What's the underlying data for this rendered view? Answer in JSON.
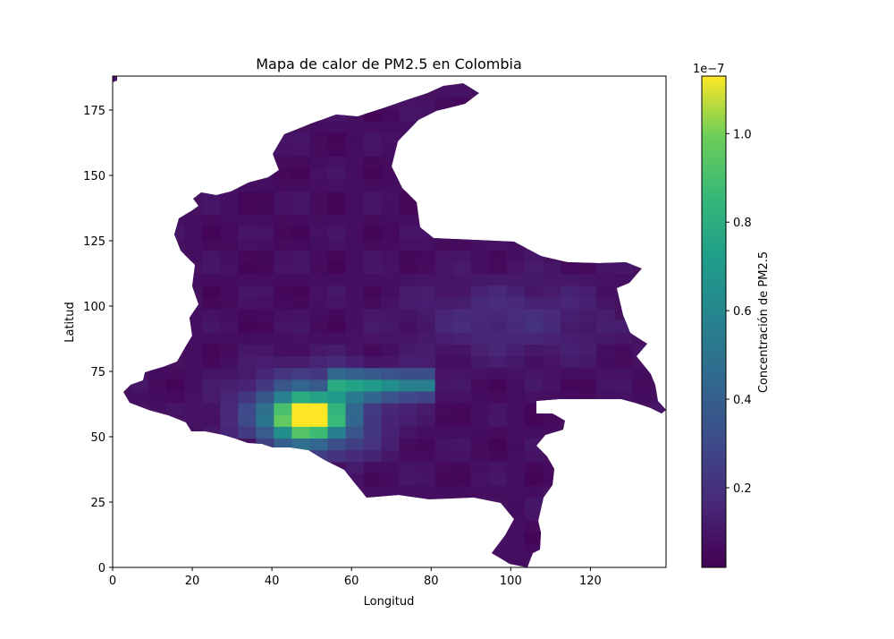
{
  "chart_data": {
    "type": "heatmap",
    "title": "Mapa de calor de PM2.5 en Colombia",
    "xlabel": "Longitud",
    "ylabel": "Latitud",
    "xlim": [
      0,
      139
    ],
    "ylim": [
      0,
      188
    ],
    "xticks": [
      0,
      20,
      40,
      60,
      80,
      100,
      120
    ],
    "yticks": [
      0,
      25,
      50,
      75,
      100,
      125,
      150,
      175
    ],
    "colormap": "viridis",
    "colorbar": {
      "label": "Concentración de PM2.5",
      "offset_text": "1e−7",
      "min": 0.02,
      "max": 1.13,
      "ticks": [
        0.2,
        0.4,
        0.6,
        0.8,
        1.0
      ],
      "tick_labels": [
        "0.2",
        "0.4",
        "0.6",
        "0.8",
        "1.0"
      ]
    },
    "hotspot": {
      "center_lon": 49,
      "center_lat": 58,
      "peak_value": 1.1,
      "note_high_band": "values ~0.6–0.7 along lat 70 from lon 55 to 78"
    },
    "grid": false
  }
}
